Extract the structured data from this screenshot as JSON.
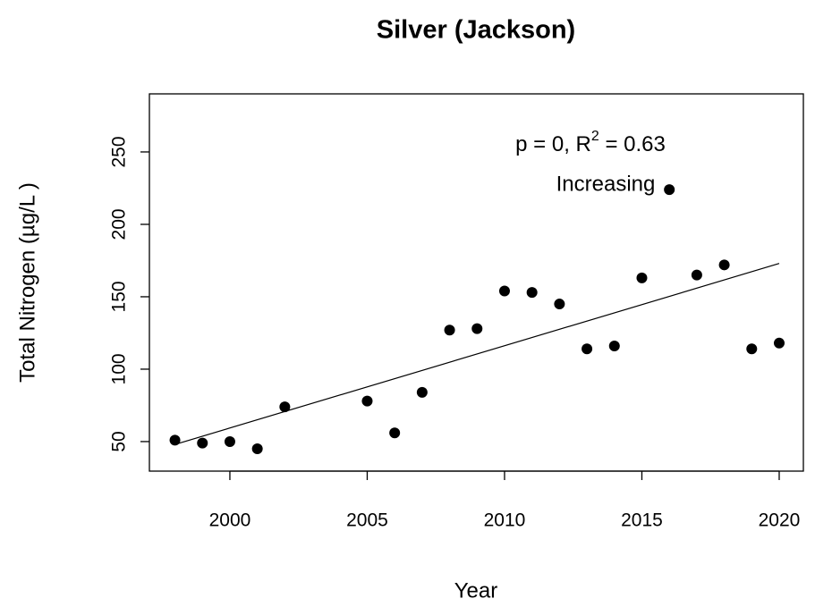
{
  "chart_data": {
    "type": "scatter",
    "title": "Silver (Jackson)",
    "xlabel": "Year",
    "ylabel": "Total Nitrogen (µg/L )",
    "x": [
      1998,
      1999,
      2000,
      2001,
      2002,
      2005,
      2006,
      2007,
      2008,
      2009,
      2010,
      2011,
      2012,
      2013,
      2014,
      2015,
      2016,
      2017,
      2018,
      2019,
      2020
    ],
    "values": [
      51,
      49,
      50,
      45,
      74,
      78,
      56,
      84,
      127,
      128,
      154,
      153,
      145,
      114,
      116,
      163,
      224,
      165,
      172,
      114,
      118
    ],
    "color": "#000000",
    "trend": {
      "x": [
        1998,
        2020
      ],
      "values": [
        48,
        173
      ]
    },
    "annotation_parts": [
      "p = 0, R",
      "2",
      " = 0.63"
    ],
    "trend_label": "Increasing",
    "xlim": [
      1997.07,
      2020.88
    ],
    "xticks": [
      2000,
      2005,
      2010,
      2015,
      2020
    ],
    "ylim": [
      29.6,
      290.1
    ],
    "yticks": [
      50,
      100,
      150,
      200,
      250
    ],
    "grid": false
  }
}
